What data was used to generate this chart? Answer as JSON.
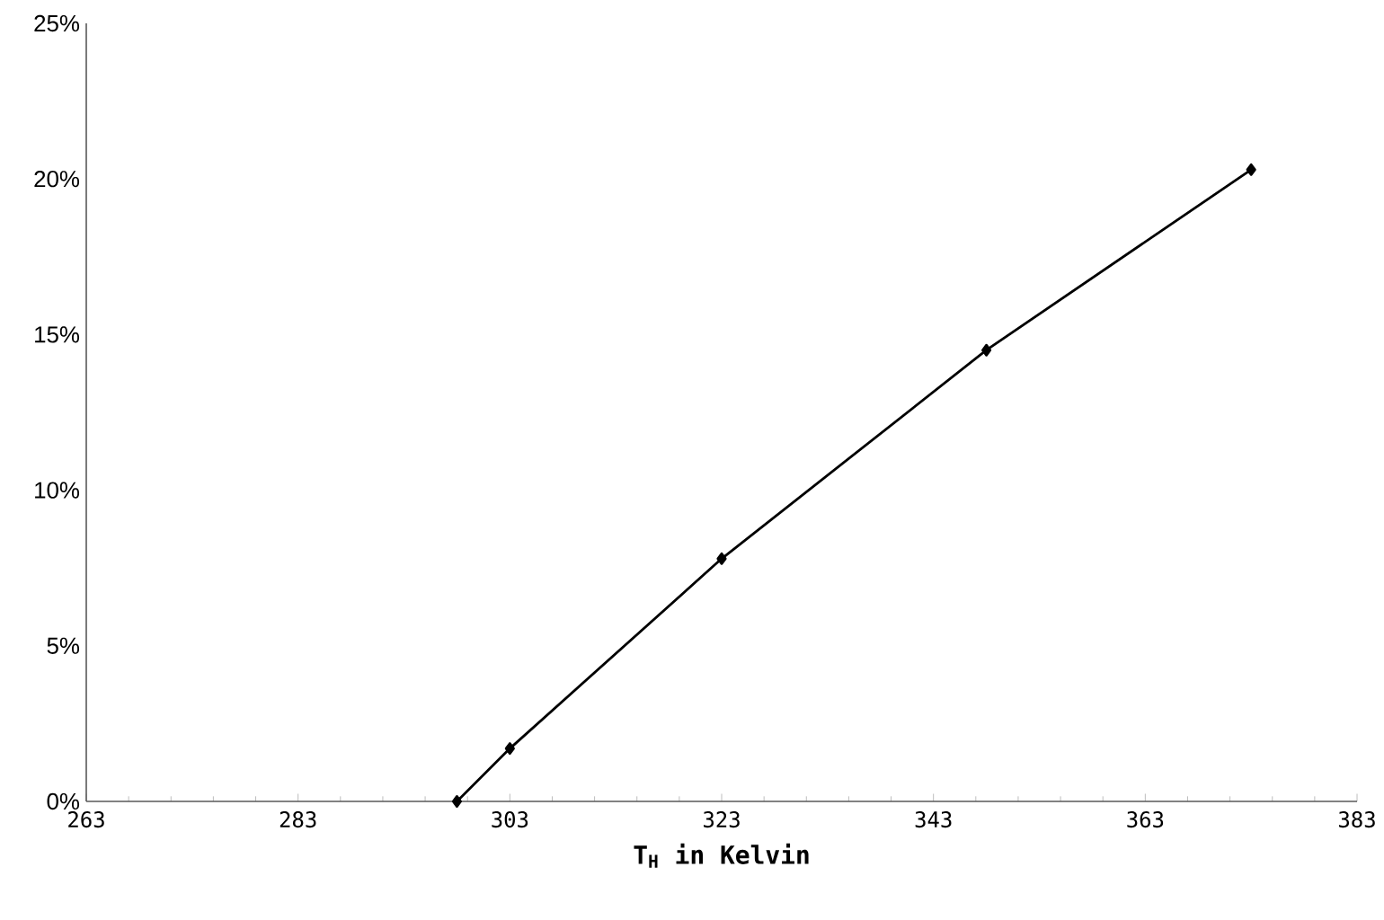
{
  "chart_data": {
    "type": "line",
    "xlabel": "T$_{H}$ in Kelvin",
    "series": [
      {
        "color": "#000000",
        "x": [
          298,
          303,
          323,
          348,
          373
        ],
        "values": [
          0,
          1.7,
          7.8,
          14.5,
          20.3
        ]
      }
    ],
    "xlim": [
      263,
      383
    ],
    "xticks": [
      263,
      283,
      303,
      323,
      343,
      363,
      383
    ],
    "ylim": [
      0,
      25
    ],
    "yticks": [
      {
        "value": 0,
        "label": "0%"
      },
      {
        "value": 5,
        "label": "5%"
      },
      {
        "value": 10,
        "label": "10%"
      },
      {
        "value": 15,
        "label": "15%"
      },
      {
        "value": 20,
        "label": "20%"
      },
      {
        "value": 25,
        "label": "25%"
      }
    ],
    "marker": "diamond",
    "line_style": "solid"
  }
}
